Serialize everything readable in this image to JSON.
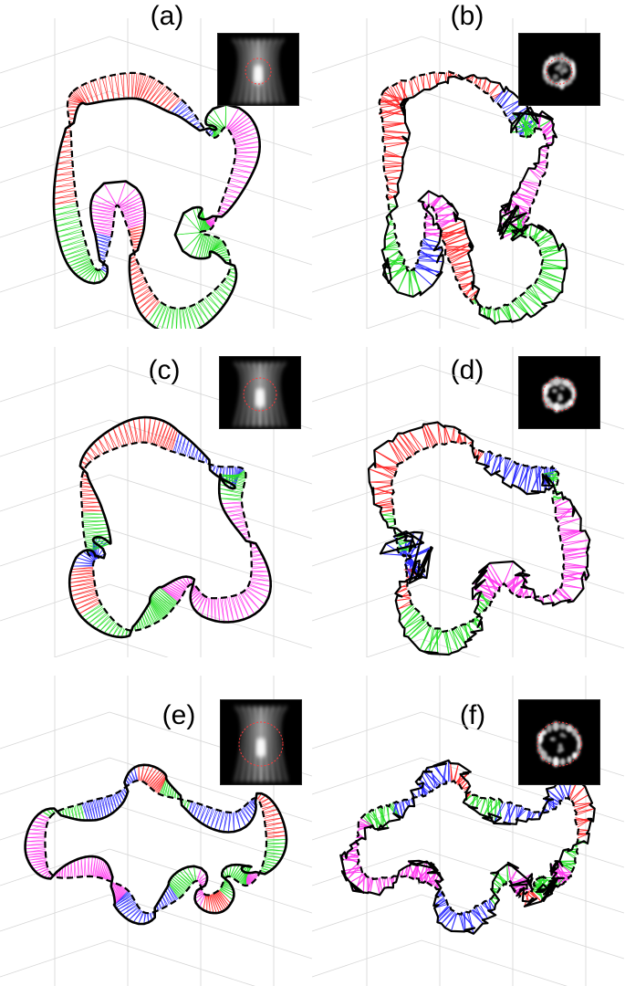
{
  "figure": {
    "panels": [
      {
        "id": "a",
        "label": "(a)",
        "type": "simulation"
      },
      {
        "id": "b",
        "label": "(b)",
        "type": "experiment"
      },
      {
        "id": "c",
        "label": "(c)",
        "type": "simulation"
      },
      {
        "id": "d",
        "label": "(d)",
        "type": "experiment"
      },
      {
        "id": "e",
        "label": "(e)",
        "type": "simulation"
      },
      {
        "id": "f",
        "label": "(f)",
        "type": "experiment"
      }
    ],
    "colors": {
      "red": "#ff2a2a",
      "blue": "#2a2aff",
      "green": "#28e028",
      "magenta": "#ff3cf0",
      "outline": "#000000",
      "grid": "#cccccc",
      "inset_bg": "#000000",
      "inset_circle": "#ff3b3b"
    }
  }
}
